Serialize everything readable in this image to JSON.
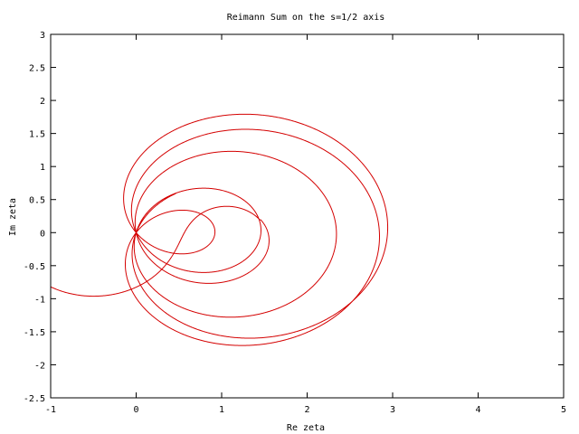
{
  "chart_data": {
    "type": "line",
    "title": "Reimann Sum on the s=1/2 axis",
    "xlabel": "Re zeta",
    "ylabel": "Im zeta",
    "xlim": [
      -1,
      5
    ],
    "ylim": [
      -2.5,
      3
    ],
    "xticks": [
      "-1",
      "0",
      "1",
      "2",
      "3",
      "4",
      "5"
    ],
    "yticks": [
      "-2.5",
      "-2",
      "-1.5",
      "-1",
      "-0.5",
      "0",
      "0.5",
      "1",
      "1.5",
      "2",
      "2.5",
      "3"
    ],
    "grid": false,
    "legend": "none",
    "series": [
      {
        "color": "#d40000",
        "curve": "zeta(1/2 + it)",
        "t_range": [
          0,
          38
        ]
      }
    ]
  }
}
